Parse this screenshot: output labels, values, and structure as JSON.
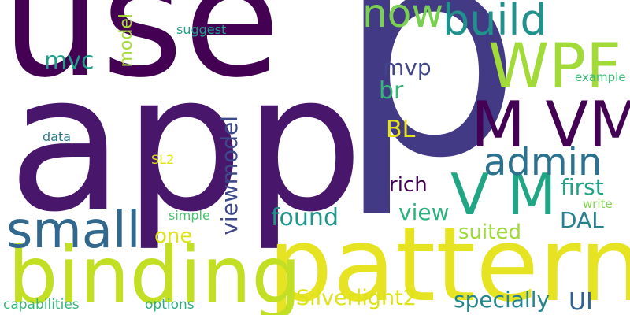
{
  "words": [
    {
      "id": "use",
      "text": "use",
      "color": "#440154"
    },
    {
      "id": "app",
      "text": "app",
      "color": "#48166b"
    },
    {
      "id": "p",
      "text": "p",
      "color": "#433a85"
    },
    {
      "id": "pattern",
      "text": "pattern",
      "color": "#e6e323"
    },
    {
      "id": "binding",
      "text": "binding",
      "color": "#c2df23"
    },
    {
      "id": "small",
      "text": "small",
      "color": "#31688e"
    },
    {
      "id": "m-vm",
      "text": "M VM",
      "color": "#440154"
    },
    {
      "id": "v-m",
      "text": "V M",
      "color": "#21a685"
    },
    {
      "id": "wpf",
      "text": "WPF",
      "color": "#a2da37"
    },
    {
      "id": "build",
      "text": "build",
      "color": "#21918c"
    },
    {
      "id": "now",
      "text": "now",
      "color": "#7ad151"
    },
    {
      "id": "admin",
      "text": "admin",
      "color": "#2c718e"
    },
    {
      "id": "silverlight2",
      "text": "Silverlight2",
      "color": "#dde318"
    },
    {
      "id": "viewmodel",
      "text": "viewmodel",
      "color": "#3e4989"
    },
    {
      "id": "specially",
      "text": "specially",
      "color": "#25858e"
    },
    {
      "id": "found",
      "text": "found",
      "color": "#1f978b"
    },
    {
      "id": "view",
      "text": "view",
      "color": "#2db27d"
    },
    {
      "id": "first",
      "text": "first",
      "color": "#20a486"
    },
    {
      "id": "rich",
      "text": "rich",
      "color": "#440154"
    },
    {
      "id": "mvc",
      "text": "mvc",
      "color": "#1f9e89"
    },
    {
      "id": "mvp",
      "text": "mvp",
      "color": "#404688"
    },
    {
      "id": "br",
      "text": "br",
      "color": "#35b779"
    },
    {
      "id": "bl",
      "text": "BL",
      "color": "#e5e419"
    },
    {
      "id": "dal",
      "text": "DAL",
      "color": "#26828e"
    },
    {
      "id": "ui",
      "text": "UI",
      "color": "#33638d"
    },
    {
      "id": "one",
      "text": "one",
      "color": "#dde318"
    },
    {
      "id": "suited",
      "text": "suited",
      "color": "#9fda3a"
    },
    {
      "id": "model",
      "text": "model",
      "color": "#a5db36"
    },
    {
      "id": "suggest",
      "text": "suggest",
      "color": "#1fa187"
    },
    {
      "id": "example",
      "text": "example",
      "color": "#3bbb75"
    },
    {
      "id": "data",
      "text": "data",
      "color": "#2a788e"
    },
    {
      "id": "sl2",
      "text": "SL2",
      "color": "#dde318"
    },
    {
      "id": "simple",
      "text": "simple",
      "color": "#4ac16d"
    },
    {
      "id": "write",
      "text": "write",
      "color": "#7fd34e"
    },
    {
      "id": "capabilities",
      "text": "capabilities",
      "color": "#35b779"
    },
    {
      "id": "options",
      "text": "options",
      "color": "#29af7f"
    }
  ]
}
